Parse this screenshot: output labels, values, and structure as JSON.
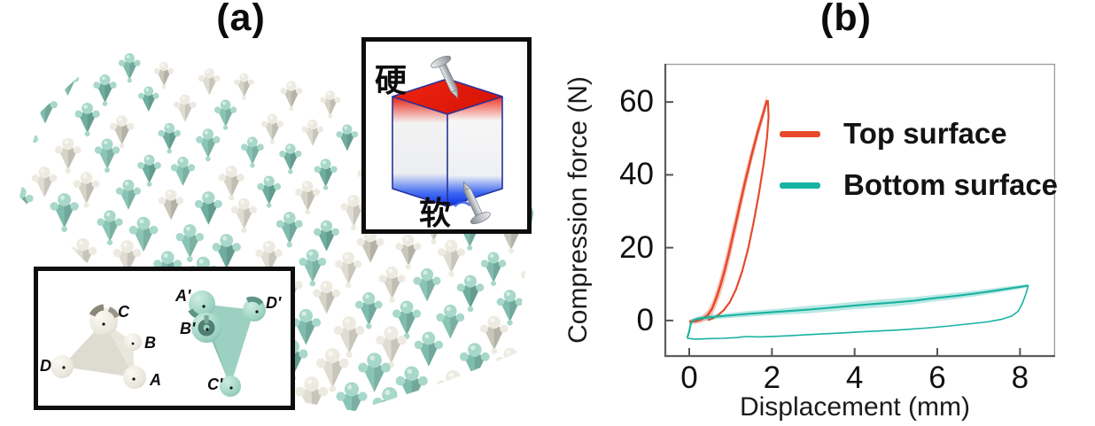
{
  "panel_a": {
    "title": "(a)",
    "lattice": {
      "teal_bodies": [
        "#6fae9f",
        "#7fbcad",
        "#8ac4b5"
      ],
      "teal_sphere": "#a8d8c9",
      "cream_bodies": [
        "#c9c6ba",
        "#d6d3c7",
        "#dfdcd1"
      ],
      "cream_sphere": "#edebe1"
    },
    "inset_cube": {
      "hard_label": "硬",
      "soft_label": "软",
      "top_color": "#ec1c0c",
      "bottom_color": "#0c2fe8",
      "edge_color": "#26329b",
      "nail_color": "#c3c7cb"
    },
    "inset_unit": {
      "unit1_labels": [
        "C",
        "B",
        "D",
        "A"
      ],
      "unit2_labels": [
        "A'",
        "B'",
        "C'",
        "D'"
      ],
      "unit1_color": "#dedbd0",
      "unit2_color": "#9cd1c2"
    }
  },
  "panel_b": {
    "title": "(b)"
  },
  "chart_data": {
    "type": "line",
    "xlabel": "Displacement (mm)",
    "ylabel": "Compression force (N)",
    "xlim": [
      -0.6,
      8.85
    ],
    "ylim": [
      -10,
      70.5
    ],
    "xticks": [
      0,
      2,
      4,
      6,
      8
    ],
    "yticks": [
      0,
      20,
      40,
      60
    ],
    "grid": false,
    "legend_position": "upper-right-inside",
    "series": [
      {
        "name": "Top surface",
        "color": "#e64a2b",
        "band_opacity": 0.3,
        "load": [
          [
            0,
            -0.3,
            0.6
          ],
          [
            0.15,
            -0.2,
            0.7
          ],
          [
            0.3,
            0.3,
            0.9
          ],
          [
            0.45,
            1.5,
            1.4
          ],
          [
            0.55,
            3.2,
            1.9
          ],
          [
            0.65,
            6,
            2.3
          ],
          [
            0.75,
            9.5,
            2.7
          ],
          [
            0.85,
            13.5,
            3
          ],
          [
            0.95,
            18,
            3.1
          ],
          [
            1.05,
            23,
            3.1
          ],
          [
            1.15,
            28,
            3
          ],
          [
            1.25,
            33,
            2.8
          ],
          [
            1.35,
            38,
            2.6
          ],
          [
            1.5,
            45,
            2.3
          ],
          [
            1.65,
            51.5,
            2
          ],
          [
            1.78,
            56.5,
            1.7
          ],
          [
            1.88,
            60.5,
            1.4
          ]
        ],
        "unload": [
          [
            1.9,
            60.5
          ],
          [
            1.92,
            56
          ],
          [
            1.88,
            50
          ],
          [
            1.8,
            43
          ],
          [
            1.68,
            34.5
          ],
          [
            1.55,
            26.5
          ],
          [
            1.42,
            19.5
          ],
          [
            1.28,
            13.5
          ],
          [
            1.13,
            8.5
          ],
          [
            0.98,
            5
          ],
          [
            0.83,
            2.8
          ],
          [
            0.68,
            1.3
          ],
          [
            0.55,
            0.5
          ],
          [
            0.45,
            0.1
          ]
        ]
      },
      {
        "name": "Bottom surface",
        "color": "#18b2a2",
        "band_opacity": 0.3,
        "load": [
          [
            -0.05,
            -4.8,
            0.4
          ],
          [
            0,
            -3,
            0.4
          ],
          [
            0.03,
            -1.2,
            0.4
          ],
          [
            0.08,
            0,
            0.5
          ],
          [
            0.2,
            0.5,
            0.6
          ],
          [
            0.5,
            0.9,
            0.7
          ],
          [
            0.9,
            1.3,
            0.7
          ],
          [
            1.4,
            1.8,
            0.8
          ],
          [
            1.9,
            2.2,
            0.8
          ],
          [
            2.4,
            2.6,
            0.9
          ],
          [
            2.9,
            3,
            1
          ],
          [
            3.4,
            3.5,
            1
          ],
          [
            3.9,
            4,
            1
          ],
          [
            4.4,
            4.5,
            1.1
          ],
          [
            4.9,
            4.9,
            1.1
          ],
          [
            5.4,
            5.4,
            1
          ],
          [
            5.9,
            6.1,
            0.9
          ],
          [
            6.4,
            6.7,
            0.9
          ],
          [
            6.9,
            7.4,
            0.8
          ],
          [
            7.4,
            8.2,
            0.7
          ],
          [
            7.8,
            8.9,
            0.6
          ],
          [
            8.05,
            9.3,
            0.5
          ],
          [
            8.2,
            9.6,
            0.4
          ]
        ],
        "unload": [
          [
            8.2,
            9.6
          ],
          [
            8.15,
            7.5
          ],
          [
            8.05,
            4.5
          ],
          [
            7.95,
            2.5
          ],
          [
            7.8,
            1.2
          ],
          [
            7.55,
            0.3
          ],
          [
            7.2,
            -0.4
          ],
          [
            6.7,
            -1
          ],
          [
            6.2,
            -1.6
          ],
          [
            5.7,
            -2.1
          ],
          [
            5.2,
            -2.5
          ],
          [
            4.7,
            -2.8
          ],
          [
            4.2,
            -3.1
          ],
          [
            3.7,
            -3.4
          ],
          [
            3.2,
            -3.7
          ],
          [
            2.7,
            -4
          ],
          [
            2.2,
            -4.3
          ],
          [
            1.7,
            -4.5
          ],
          [
            1.35,
            -4.4
          ],
          [
            1.15,
            -4.7
          ],
          [
            0.8,
            -4.9
          ],
          [
            0.45,
            -5
          ],
          [
            0.15,
            -5.1
          ],
          [
            -0.05,
            -4.9
          ]
        ]
      }
    ]
  }
}
